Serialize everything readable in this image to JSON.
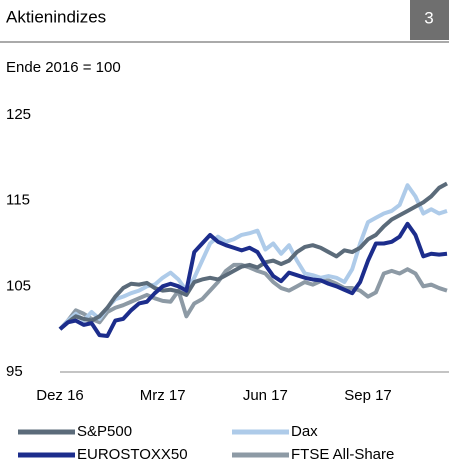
{
  "chart_data": {
    "type": "line",
    "title": "Aktienindizes",
    "badge": "3",
    "subtitle": "Ende 2016 = 100",
    "categories": [
      "Dez 16",
      null,
      null,
      null,
      null,
      null,
      null,
      null,
      null,
      null,
      null,
      null,
      null,
      "Mrz 17",
      null,
      null,
      null,
      null,
      null,
      null,
      null,
      null,
      null,
      null,
      null,
      null,
      "Jun 17",
      null,
      null,
      null,
      null,
      null,
      null,
      null,
      null,
      null,
      null,
      null,
      null,
      "Sep 17",
      null,
      null,
      null,
      null,
      null,
      null,
      null,
      null,
      null,
      null
    ],
    "ylim": [
      95,
      125
    ],
    "yticks": [
      95,
      105,
      115,
      125
    ],
    "grid": false,
    "series": [
      {
        "name": "S&P500",
        "color": "#5b6b7a",
        "values": [
          100,
          100.8,
          101.5,
          101.2,
          101.0,
          101.5,
          102.5,
          103.8,
          104.8,
          105.3,
          105.2,
          105.4,
          104.8,
          104.5,
          104.6,
          104.4,
          104.0,
          105.5,
          105.8,
          106.0,
          105.8,
          106.3,
          106.8,
          107.3,
          107.5,
          107.2,
          107.8,
          108.0,
          107.6,
          108.0,
          109.0,
          109.6,
          109.8,
          109.5,
          109.0,
          108.5,
          109.2,
          109.0,
          109.5,
          110.5,
          111.0,
          112.0,
          112.8,
          113.3,
          113.8,
          114.3,
          114.8,
          115.5,
          116.5,
          117.0
        ]
      },
      {
        "name": "Dax",
        "color": "#aecbe9",
        "values": [
          100,
          101,
          101.8,
          101,
          102,
          101.2,
          102.5,
          103.5,
          103.8,
          104.2,
          104.5,
          105,
          105.2,
          106,
          106.6,
          105.8,
          104.5,
          106,
          108,
          110,
          110.8,
          110.2,
          110.5,
          111,
          111.2,
          111.5,
          109.3,
          110,
          108.8,
          109.8,
          108,
          106.5,
          106.3,
          106,
          106.2,
          106,
          105.5,
          107,
          110,
          112.5,
          113,
          113.5,
          113.8,
          114.5,
          116.8,
          115.5,
          113.5,
          114,
          113.5,
          113.8
        ]
      },
      {
        "name": "EUROSTOXX50",
        "color": "#1c2d8c",
        "values": [
          100,
          100.8,
          101,
          100.5,
          100.7,
          99.3,
          99.2,
          101,
          101.2,
          102.2,
          103,
          103.2,
          104.2,
          105,
          105.3,
          105,
          104.5,
          109,
          110,
          111,
          110.2,
          109.8,
          109.5,
          109.2,
          109.5,
          109,
          107.5,
          106.2,
          105.6,
          106.6,
          106.3,
          106,
          105.8,
          105.7,
          105.3,
          105,
          104.6,
          104.2,
          105.5,
          108,
          110,
          110,
          110.2,
          110.8,
          112.3,
          111,
          108.5,
          108.8,
          108.7,
          108.8
        ]
      },
      {
        "name": "FTSE All-Share",
        "color": "#8d9aa5",
        "values": [
          100,
          101,
          102.2,
          101.8,
          101.2,
          100.8,
          102,
          102.5,
          102.8,
          103.2,
          103.6,
          104,
          103.6,
          103.3,
          103.2,
          104.5,
          101.5,
          103,
          103.5,
          104.5,
          105.5,
          106.8,
          107.5,
          107.5,
          107.2,
          106.8,
          106.5,
          105.5,
          104.8,
          104.5,
          105,
          105.5,
          105.2,
          105.6,
          105.7,
          105.3,
          104.8,
          104.8,
          104.5,
          103.8,
          104.3,
          106.5,
          106.8,
          106.5,
          107,
          106.5,
          105,
          105.2,
          104.8,
          104.5
        ]
      }
    ]
  }
}
